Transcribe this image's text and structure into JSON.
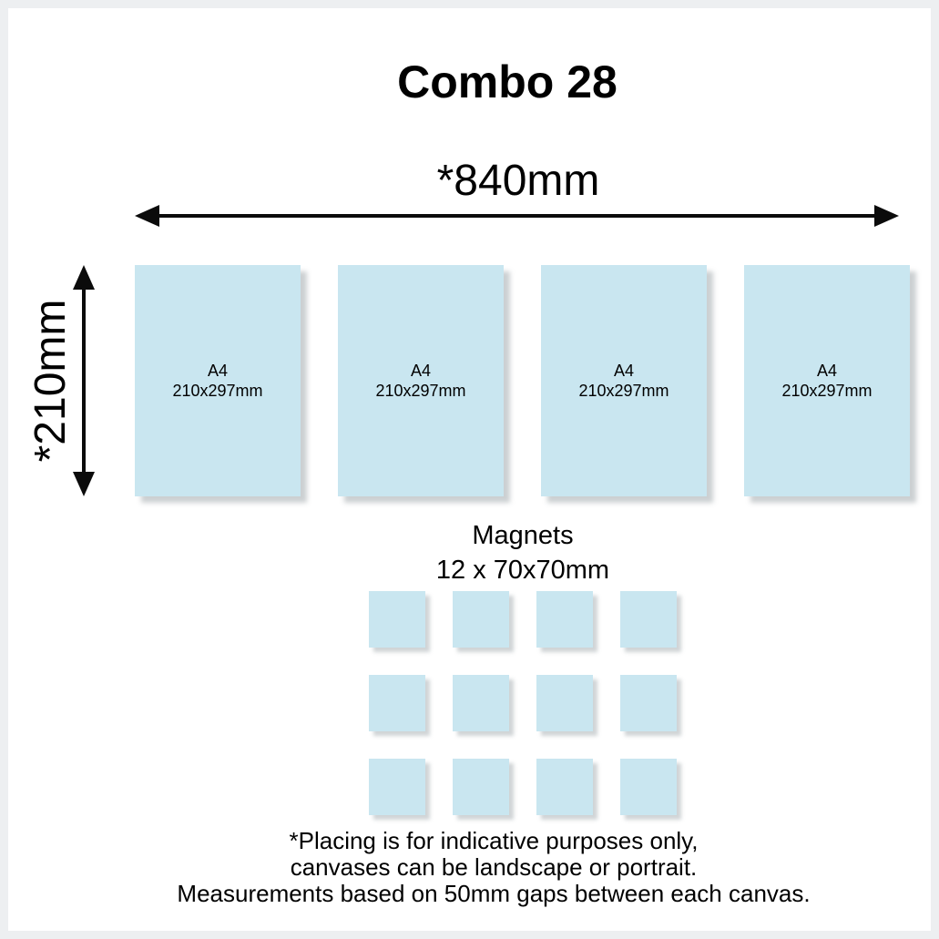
{
  "page": {
    "title": "Combo 28",
    "background_color": "#ffffff",
    "frame_color": "#edeff1",
    "canvas_color": "#c9e6f0",
    "text_color": "#000000"
  },
  "dimensions": {
    "width_label": "*840mm",
    "height_label": "*210mm"
  },
  "canvases": {
    "count": 4,
    "items": [
      {
        "name": "A4",
        "size": "210x297mm"
      },
      {
        "name": "A4",
        "size": "210x297mm"
      },
      {
        "name": "A4",
        "size": "210x297mm"
      },
      {
        "name": "A4",
        "size": "210x297mm"
      }
    ]
  },
  "magnets": {
    "title": "Magnets",
    "subtitle": "12 x 70x70mm",
    "count": 12,
    "rows": 3,
    "cols": 4
  },
  "footer": {
    "lines": [
      "*Placing is for indicative purposes only,",
      "canvases can be landscape or portrait.",
      "Measurements based on 50mm gaps between each canvas."
    ]
  }
}
